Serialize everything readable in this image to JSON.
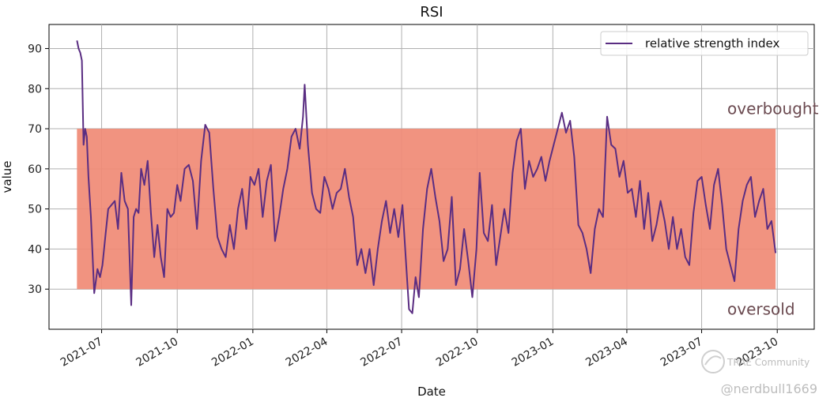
{
  "chart_data": {
    "type": "line",
    "title": "RSI",
    "xlabel": "Date",
    "ylabel": "value",
    "ylim": [
      20,
      96
    ],
    "xlim": [
      "2021-04-28",
      "2023-11-15"
    ],
    "grid": true,
    "legend_position": "top-right",
    "y_ticks": [
      30,
      40,
      50,
      60,
      70,
      80,
      90
    ],
    "x_ticks": [
      "2021-07",
      "2021-10",
      "2022-01",
      "2022-04",
      "2022-07",
      "2022-10",
      "2023-01",
      "2023-04",
      "2023-07",
      "2023-10"
    ],
    "band": {
      "from": 30,
      "to": 70,
      "x_start": "2021-06-01",
      "x_end": "2023-09-29",
      "color": "#f08a75"
    },
    "series": [
      {
        "name": "relative strength index",
        "color": "#5a2d82",
        "x": [
          "2021-06-01",
          "2021-06-03",
          "2021-06-05",
          "2021-06-07",
          "2021-06-09",
          "2021-06-11",
          "2021-06-13",
          "2021-06-15",
          "2021-06-18",
          "2021-06-22",
          "2021-06-26",
          "2021-06-29",
          "2021-07-02",
          "2021-07-06",
          "2021-07-09",
          "2021-07-13",
          "2021-07-17",
          "2021-07-21",
          "2021-07-25",
          "2021-07-29",
          "2021-08-02",
          "2021-08-06",
          "2021-08-09",
          "2021-08-12",
          "2021-08-15",
          "2021-08-18",
          "2021-08-22",
          "2021-08-26",
          "2021-08-30",
          "2021-09-03",
          "2021-09-07",
          "2021-09-11",
          "2021-09-15",
          "2021-09-19",
          "2021-09-23",
          "2021-09-27",
          "2021-10-01",
          "2021-10-05",
          "2021-10-10",
          "2021-10-15",
          "2021-10-20",
          "2021-10-25",
          "2021-10-30",
          "2021-11-04",
          "2021-11-09",
          "2021-11-14",
          "2021-11-19",
          "2021-11-24",
          "2021-11-29",
          "2021-12-04",
          "2021-12-09",
          "2021-12-14",
          "2021-12-19",
          "2021-12-24",
          "2021-12-29",
          "2022-01-03",
          "2022-01-08",
          "2022-01-13",
          "2022-01-18",
          "2022-01-23",
          "2022-01-28",
          "2022-02-02",
          "2022-02-07",
          "2022-02-12",
          "2022-02-17",
          "2022-02-22",
          "2022-02-27",
          "2022-03-03",
          "2022-03-05",
          "2022-03-09",
          "2022-03-14",
          "2022-03-19",
          "2022-03-24",
          "2022-03-29",
          "2022-04-03",
          "2022-04-08",
          "2022-04-13",
          "2022-04-18",
          "2022-04-23",
          "2022-04-28",
          "2022-05-03",
          "2022-05-08",
          "2022-05-13",
          "2022-05-18",
          "2022-05-23",
          "2022-05-28",
          "2022-06-02",
          "2022-06-07",
          "2022-06-12",
          "2022-06-17",
          "2022-06-22",
          "2022-06-27",
          "2022-07-02",
          "2022-07-06",
          "2022-07-10",
          "2022-07-14",
          "2022-07-18",
          "2022-07-22",
          "2022-07-27",
          "2022-08-01",
          "2022-08-06",
          "2022-08-11",
          "2022-08-16",
          "2022-08-21",
          "2022-08-26",
          "2022-08-31",
          "2022-09-05",
          "2022-09-10",
          "2022-09-15",
          "2022-09-20",
          "2022-09-25",
          "2022-09-30",
          "2022-10-04",
          "2022-10-09",
          "2022-10-14",
          "2022-10-19",
          "2022-10-24",
          "2022-10-29",
          "2022-11-03",
          "2022-11-08",
          "2022-11-13",
          "2022-11-18",
          "2022-11-23",
          "2022-11-28",
          "2022-12-03",
          "2022-12-08",
          "2022-12-13",
          "2022-12-18",
          "2022-12-23",
          "2022-12-28",
          "2023-01-02",
          "2023-01-07",
          "2023-01-12",
          "2023-01-17",
          "2023-01-22",
          "2023-01-27",
          "2023-02-01",
          "2023-02-06",
          "2023-02-11",
          "2023-02-16",
          "2023-02-21",
          "2023-02-26",
          "2023-03-03",
          "2023-03-08",
          "2023-03-13",
          "2023-03-18",
          "2023-03-23",
          "2023-03-28",
          "2023-04-02",
          "2023-04-07",
          "2023-04-12",
          "2023-04-17",
          "2023-04-22",
          "2023-04-27",
          "2023-05-02",
          "2023-05-07",
          "2023-05-12",
          "2023-05-17",
          "2023-05-22",
          "2023-05-27",
          "2023-06-01",
          "2023-06-06",
          "2023-06-11",
          "2023-06-16",
          "2023-06-21",
          "2023-06-26",
          "2023-07-01",
          "2023-07-06",
          "2023-07-11",
          "2023-07-16",
          "2023-07-21",
          "2023-07-26",
          "2023-07-31",
          "2023-08-05",
          "2023-08-10",
          "2023-08-15",
          "2023-08-20",
          "2023-08-25",
          "2023-08-30",
          "2023-09-04",
          "2023-09-09",
          "2023-09-14",
          "2023-09-19",
          "2023-09-24",
          "2023-09-29"
        ],
        "values": [
          92,
          90,
          89,
          87,
          66,
          70,
          68,
          58,
          48,
          29,
          35,
          33,
          36,
          44,
          50,
          51,
          52,
          45,
          59,
          52,
          50,
          26,
          48,
          50,
          49,
          60,
          56,
          62,
          49,
          38,
          46,
          38,
          33,
          50,
          48,
          49,
          56,
          52,
          60,
          61,
          57,
          45,
          62,
          71,
          69,
          55,
          43,
          40,
          38,
          46,
          40,
          50,
          55,
          45,
          58,
          56,
          60,
          48,
          57,
          61,
          42,
          48,
          55,
          60,
          68,
          70,
          65,
          73,
          81,
          66,
          54,
          50,
          49,
          58,
          55,
          50,
          54,
          55,
          60,
          53,
          48,
          36,
          40,
          34,
          40,
          31,
          40,
          47,
          52,
          44,
          50,
          43,
          51,
          38,
          25,
          24,
          33,
          28,
          45,
          55,
          60,
          53,
          47,
          37,
          40,
          53,
          31,
          35,
          45,
          37,
          28,
          40,
          59,
          44,
          42,
          51,
          36,
          43,
          50,
          44,
          59,
          67,
          70,
          55,
          62,
          58,
          60,
          63,
          57,
          62,
          66,
          70,
          74,
          69,
          72,
          63,
          46,
          44,
          40,
          34,
          45,
          50,
          48,
          73,
          66,
          65,
          58,
          62,
          54,
          55,
          48,
          57,
          45,
          54,
          42,
          46,
          52,
          47,
          40,
          48,
          40,
          45,
          38,
          36,
          49,
          57,
          58,
          51,
          45,
          56,
          60,
          51,
          40,
          36,
          32,
          45,
          52,
          56,
          58,
          48,
          52,
          55,
          45,
          47,
          39
        ]
      }
    ],
    "annotations": [
      {
        "text": "overbought",
        "y": 75
      },
      {
        "text": "oversold",
        "y": 25
      }
    ]
  },
  "watermark": {
    "community": "TRAE Community",
    "handle": "@nerdbull1669"
  }
}
